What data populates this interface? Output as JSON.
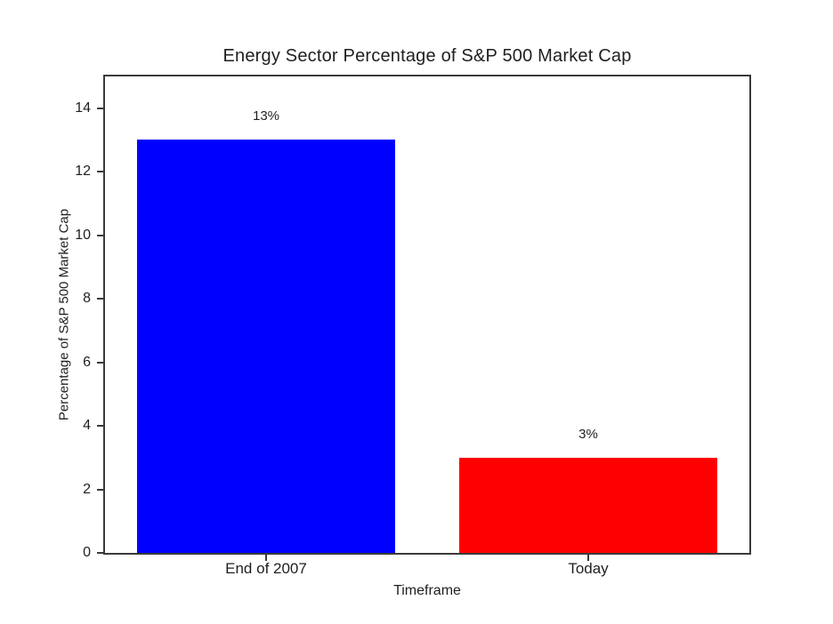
{
  "chart_data": {
    "type": "bar",
    "title": "Energy Sector Percentage of S&P 500 Market Cap",
    "categories": [
      "End of 2007",
      "Today"
    ],
    "values": [
      13,
      3
    ],
    "bar_labels": [
      "13%",
      "3%"
    ],
    "bar_colors": [
      "#0000ff",
      "#ff0000"
    ],
    "xlabel": "Timeframe",
    "ylabel": "Percentage of S&P 500 Market Cap",
    "ylim": [
      0,
      15
    ],
    "xlim": [
      -0.5,
      1.5
    ],
    "bar_width": 0.8,
    "yticks": [
      0,
      2,
      4,
      6,
      8,
      10,
      12,
      14
    ],
    "grid": false,
    "legend": "none",
    "text_color": "#1f1f1f",
    "spine_color": "#3a3a3a",
    "background": "#ffffff"
  }
}
